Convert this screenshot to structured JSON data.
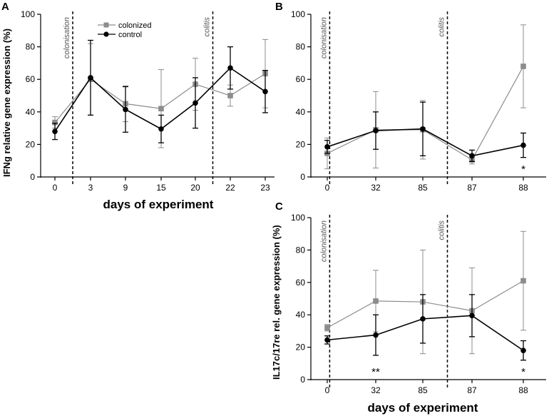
{
  "chart_data": [
    {
      "panel": "A",
      "type": "line",
      "categories": [
        "0",
        "3",
        "9",
        "15",
        "20",
        "22",
        "23"
      ],
      "ylabel": "IFNg relative gene expression (%)",
      "xlabel": "days of experiment",
      "ylim": [
        0,
        100
      ],
      "yticks": [
        0,
        20,
        40,
        60,
        80,
        100
      ],
      "legend": [
        "colonized",
        "control"
      ],
      "vlines": [
        {
          "at": 0.5,
          "label": "colonisation"
        },
        {
          "at": 4.5,
          "label": "colitis"
        }
      ],
      "series": [
        {
          "name": "colonized",
          "values": [
            33.5,
            60,
            45,
            42,
            57,
            50,
            63.5
          ],
          "err": [
            3.5,
            22,
            11,
            24,
            16,
            6.5,
            21
          ]
        },
        {
          "name": "control",
          "values": [
            28,
            61,
            41.5,
            29.5,
            45.5,
            67,
            52.5
          ],
          "err": [
            5,
            23,
            14,
            8.5,
            15.5,
            13,
            13
          ]
        }
      ],
      "annotations": []
    },
    {
      "panel": "B",
      "type": "line",
      "categories": [
        "0",
        "32",
        "85",
        "87",
        "88"
      ],
      "ylabel": "",
      "xlabel": "",
      "ylim": [
        0,
        100
      ],
      "yticks": [
        0,
        20,
        40,
        60,
        80,
        100
      ],
      "vlines": [
        {
          "at": 0.05,
          "label": "colonisation"
        },
        {
          "at": 2.5,
          "label": "colitis"
        }
      ],
      "series": [
        {
          "name": "colonized",
          "values": [
            14.5,
            29,
            29,
            10.5,
            68
          ],
          "err": [
            9.5,
            23.5,
            18,
            2.5,
            25.5
          ]
        },
        {
          "name": "control",
          "values": [
            18.5,
            28.5,
            29.5,
            13,
            19.5
          ],
          "err": [
            4,
            11.5,
            16.5,
            3.5,
            7.5
          ]
        }
      ],
      "annotations": [
        {
          "x": 4,
          "text": "*"
        }
      ]
    },
    {
      "panel": "C",
      "type": "line",
      "categories": [
        "0",
        "32",
        "85",
        "87",
        "88"
      ],
      "ylabel": "IL17c/17re rel. gene expression (%)",
      "xlabel": "days of experiment",
      "ylim": [
        0,
        100
      ],
      "yticks": [
        0,
        20,
        40,
        60,
        80,
        100
      ],
      "vlines": [
        {
          "at": 0.05,
          "label": "colonisation"
        },
        {
          "at": 2.5,
          "label": "colitis"
        }
      ],
      "series": [
        {
          "name": "colonized",
          "values": [
            32,
            48.5,
            48,
            42.5,
            61
          ],
          "err": [
            2,
            19,
            32,
            26.5,
            30.5
          ]
        },
        {
          "name": "control",
          "values": [
            24.5,
            27.5,
            37.5,
            39.5,
            18
          ],
          "err": [
            2.5,
            12.5,
            15,
            13,
            6
          ]
        }
      ],
      "annotations": [
        {
          "x": 1,
          "text": "**"
        },
        {
          "x": 4,
          "text": "*"
        }
      ]
    }
  ],
  "colors": {
    "colonized": "#8c8c8c",
    "control": "#000000"
  }
}
